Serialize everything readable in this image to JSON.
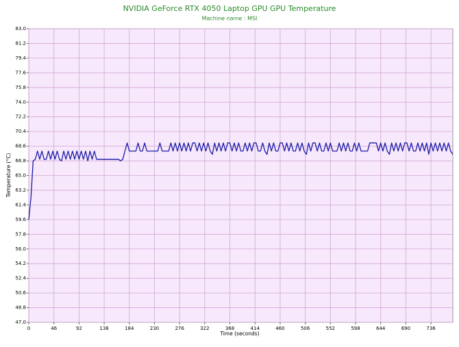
{
  "chart_data": {
    "type": "line",
    "title": "NVIDIA GeForce RTX 4050 Laptop GPU GPU Temperature",
    "subtitle": "Machine name : MSI",
    "x_label": "Time (seconds)",
    "y_label": "Temperature (°C)",
    "xlim": [
      0,
      776
    ],
    "xticks": [
      0,
      46,
      92,
      138,
      184,
      230,
      276,
      322,
      368,
      414,
      460,
      506,
      552,
      598,
      644,
      690,
      736
    ],
    "ylim": [
      47,
      83
    ],
    "yticks": [
      {
        "value": 47,
        "label": "47.0"
      },
      48.8,
      50.6,
      52.4,
      54.2,
      {
        "value": 56,
        "label": "56.0"
      },
      57.8,
      59.6,
      61.4,
      63.2,
      {
        "value": 65,
        "label": "65.0"
      },
      66.8,
      68.6,
      70.4,
      72.2,
      {
        "value": 74,
        "label": "74.0"
      },
      75.8,
      77.6,
      79.4,
      81.2,
      {
        "value": 83,
        "label": "83.0"
      }
    ],
    "grid": true,
    "x": [
      0,
      4,
      8,
      12,
      16,
      20,
      24,
      28,
      32,
      36,
      40,
      44,
      48,
      52,
      56,
      60,
      64,
      68,
      72,
      76,
      80,
      84,
      88,
      92,
      96,
      100,
      104,
      108,
      112,
      116,
      120,
      124,
      128,
      132,
      136,
      140,
      144,
      148,
      152,
      156,
      160,
      164,
      168,
      172,
      176,
      180,
      184,
      188,
      192,
      196,
      200,
      204,
      208,
      212,
      216,
      220,
      224,
      228,
      232,
      236,
      240,
      244,
      248,
      252,
      256,
      260,
      264,
      268,
      272,
      276,
      280,
      284,
      288,
      292,
      296,
      300,
      304,
      308,
      312,
      316,
      320,
      324,
      328,
      332,
      336,
      340,
      344,
      348,
      352,
      356,
      360,
      364,
      368,
      372,
      376,
      380,
      384,
      388,
      392,
      396,
      400,
      404,
      408,
      412,
      416,
      420,
      424,
      428,
      432,
      436,
      440,
      444,
      448,
      452,
      456,
      460,
      464,
      468,
      472,
      476,
      480,
      484,
      488,
      492,
      496,
      500,
      504,
      508,
      512,
      516,
      520,
      524,
      528,
      532,
      536,
      540,
      544,
      548,
      552,
      556,
      560,
      564,
      568,
      572,
      576,
      580,
      584,
      588,
      592,
      596,
      600,
      604,
      608,
      612,
      616,
      620,
      624,
      628,
      632,
      636,
      640,
      644,
      648,
      652,
      656,
      660,
      664,
      668,
      672,
      676,
      680,
      684,
      688,
      692,
      696,
      700,
      704,
      708,
      712,
      716,
      720,
      724,
      728,
      732,
      736,
      740,
      744,
      748,
      752,
      756,
      760,
      764,
      768,
      772,
      776
    ],
    "series": [
      {
        "name": "GPU Temperature",
        "color": "#1a1aa8",
        "values": [
          59.6,
          62.3,
          66.8,
          67,
          68,
          67,
          68,
          67,
          67,
          68,
          67,
          68,
          67,
          68,
          67,
          66.8,
          68,
          67,
          68,
          67,
          68,
          67,
          68,
          67,
          68,
          67,
          68,
          66.8,
          68,
          67,
          68,
          67,
          67,
          67,
          67,
          67,
          67,
          67,
          67,
          67,
          67,
          67,
          66.8,
          67,
          68,
          69,
          68,
          68,
          68,
          68,
          69,
          68,
          68,
          69,
          68,
          68,
          68,
          68,
          68,
          68,
          69,
          68,
          68,
          68,
          68,
          69,
          68,
          69,
          68,
          69,
          68,
          69,
          68,
          69,
          68,
          69,
          69,
          68,
          69,
          68,
          69,
          68,
          69,
          68,
          67.6,
          69,
          68,
          69,
          68,
          69,
          68,
          69,
          69,
          68,
          69,
          68,
          69,
          68,
          68,
          69,
          68,
          69,
          68,
          69,
          69,
          68,
          68,
          69,
          68,
          67.6,
          69,
          68,
          69,
          68,
          68,
          69,
          69,
          68,
          69,
          68,
          69,
          68,
          68,
          69,
          68,
          69,
          68,
          67.6,
          69,
          68,
          69,
          69,
          68,
          69,
          68,
          68,
          69,
          68,
          69,
          68,
          68,
          68,
          69,
          68,
          69,
          68,
          69,
          68,
          68,
          69,
          68,
          69,
          68,
          68,
          68,
          68,
          69,
          69,
          69,
          69,
          68,
          69,
          68,
          69,
          68,
          67.6,
          69,
          68,
          69,
          68,
          69,
          68,
          69,
          69,
          68,
          69,
          68,
          68,
          69,
          68,
          69,
          68,
          69,
          67.6,
          69,
          68,
          69,
          68,
          69,
          68,
          69,
          68,
          69,
          68,
          67.6
        ]
      }
    ]
  }
}
